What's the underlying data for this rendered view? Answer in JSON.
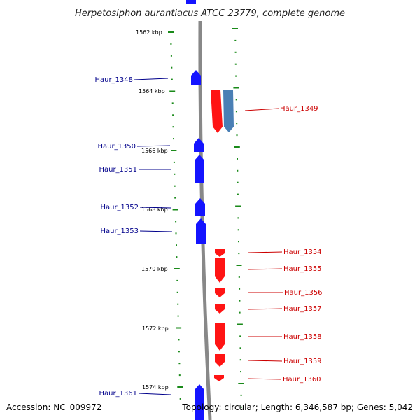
{
  "title": "Herpetosiphon aurantiacus ATCC 23779, complete genome",
  "accession": "Accession: NC_009972",
  "summary": "Topology: circular; Length: 6,346,587 bp; Genes: 5,042",
  "colors": {
    "forward_gene": "#0000ff",
    "reverse_gene": "#ff0000",
    "reverse_gene_alt": "#4a7fb5",
    "backbone": "#888888",
    "ticks": "#1a8a1a",
    "label_forward": "#00008b",
    "label_reverse": "#cc0000"
  },
  "position_labels": [
    "1562 kbp",
    "1564 kbp",
    "1566 kbp",
    "1568 kbp",
    "1570 kbp",
    "1572 kbp",
    "1574 kbp"
  ],
  "forward_genes": [
    "Haur_1348",
    "Haur_1350",
    "Haur_1351",
    "Haur_1352",
    "Haur_1353",
    "Haur_1361"
  ],
  "reverse_genes": [
    "Haur_1349",
    "Haur_1354",
    "Haur_1355",
    "Haur_1356",
    "Haur_1357",
    "Haur_1358",
    "Haur_1359",
    "Haur_1360"
  ]
}
